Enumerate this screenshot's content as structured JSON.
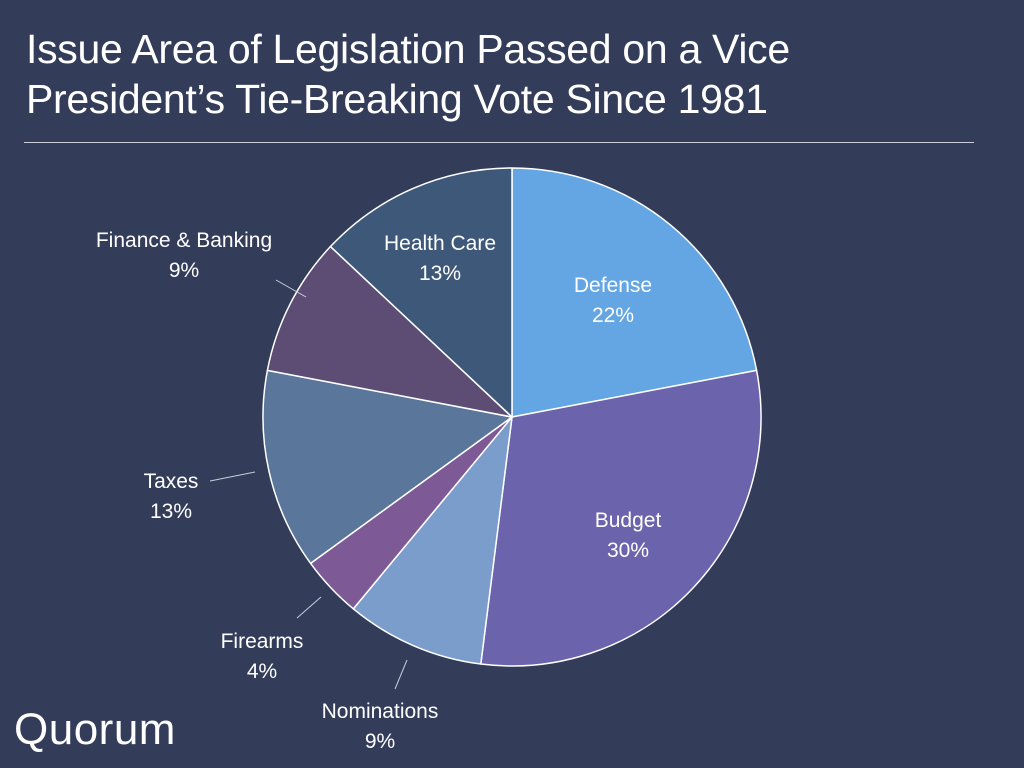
{
  "header": {
    "title_line1": "Issue Area of Legislation Passed on a Vice",
    "title_line2": "President’s Tie-Breaking Vote Since 1981"
  },
  "brand": {
    "logo_text": "Quorum"
  },
  "colors": {
    "background": "#333d5a",
    "text": "#ffffff",
    "leader": "#c9ceda"
  },
  "chart_data": {
    "type": "pie",
    "title": "Issue Area of Legislation Passed on a Vice President’s Tie-Breaking Vote Since 1981",
    "units": "%",
    "start": "12 o'clock",
    "direction": "clockwise",
    "slices": [
      {
        "label": "Defense",
        "value": 22,
        "value_label": "22%",
        "color": "#63a6e3",
        "label_position": "inside"
      },
      {
        "label": "Budget",
        "value": 30,
        "value_label": "30%",
        "color": "#6b63ab",
        "label_position": "inside"
      },
      {
        "label": "Nominations",
        "value": 9,
        "value_label": "9%",
        "color": "#7b9dcc",
        "label_position": "outside"
      },
      {
        "label": "Firearms",
        "value": 4,
        "value_label": "4%",
        "color": "#7d5a96",
        "label_position": "outside"
      },
      {
        "label": "Taxes",
        "value": 13,
        "value_label": "13%",
        "color": "#5a769b",
        "label_position": "outside"
      },
      {
        "label": "Finance & Banking",
        "value": 9,
        "value_label": "9%",
        "color": "#5d4d75",
        "label_position": "outside"
      },
      {
        "label": "Health Care",
        "value": 13,
        "value_label": "13%",
        "color": "#3d5878",
        "label_position": "inside"
      }
    ]
  }
}
